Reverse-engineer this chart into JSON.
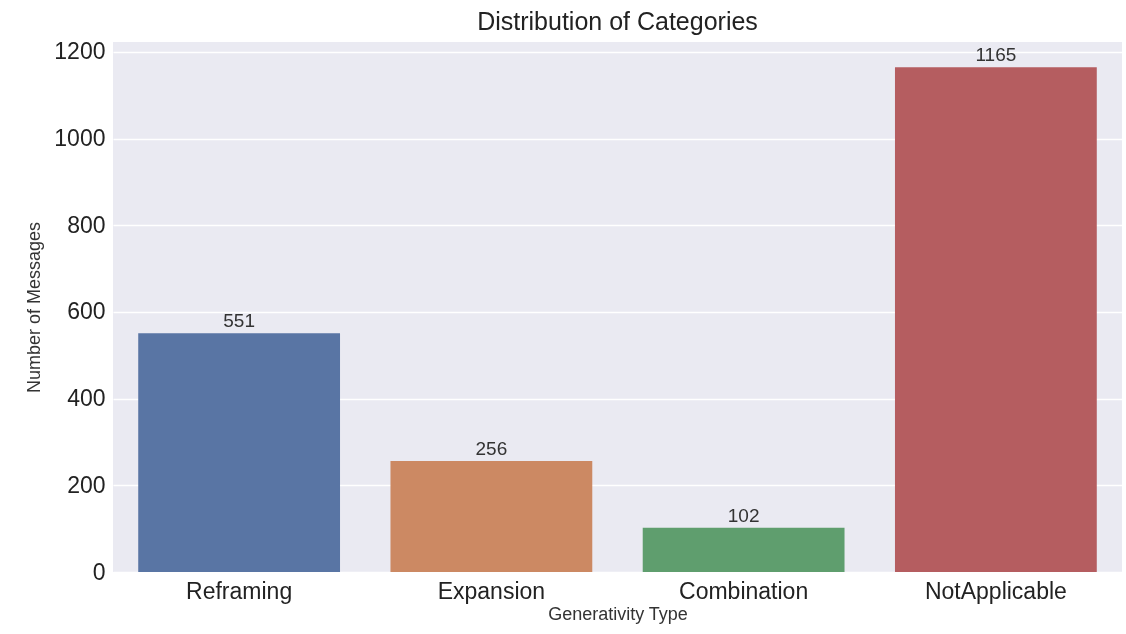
{
  "chart_data": {
    "type": "bar",
    "title": "Distribution of Categories",
    "xlabel": "Generativity Type",
    "ylabel": "Number of Messages",
    "categories": [
      "Reframing",
      "Expansion",
      "Combination",
      "NotApplicable"
    ],
    "values": [
      551,
      256,
      102,
      1165
    ],
    "colors": [
      "#5975a4",
      "#cc8963",
      "#5f9e6e",
      "#b55d60"
    ],
    "ylim": [
      0,
      1223
    ],
    "yticks": [
      0,
      200,
      400,
      600,
      800,
      1000,
      1200
    ],
    "grid": "y",
    "data_labels": true
  }
}
